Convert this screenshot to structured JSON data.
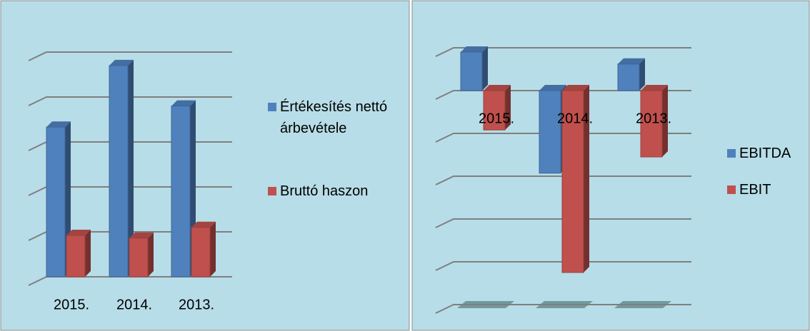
{
  "chart_data": [
    {
      "type": "bar3d",
      "categories": [
        "2015.",
        "2014.",
        "2013."
      ],
      "series": [
        {
          "name": "Értékesítés nettó árbevétele",
          "color": "#4f81bd",
          "values": [
            3.33,
            4.7,
            3.8
          ]
        },
        {
          "name": "Bruttó haszon",
          "color": "#c0504d",
          "values": [
            0.92,
            0.86,
            1.1
          ]
        }
      ],
      "ylim": [
        0,
        5
      ],
      "yticks": [
        0,
        1,
        2,
        3,
        4,
        5
      ],
      "grid": true,
      "legend": "right"
    },
    {
      "type": "bar3d",
      "categories": [
        "2015.",
        "2014.",
        "2013."
      ],
      "series": [
        {
          "name": "EBITDA",
          "color": "#4f81bd",
          "values": [
            0.9,
            -1.93,
            0.62
          ]
        },
        {
          "name": "EBIT",
          "color": "#c0504d",
          "values": [
            -0.92,
            -4.25,
            -1.55
          ]
        }
      ],
      "ylim": [
        -5,
        1
      ],
      "yticks": [
        -5,
        -4,
        -3,
        -2,
        -1,
        0,
        1
      ],
      "grid": true,
      "legend": "right"
    }
  ]
}
